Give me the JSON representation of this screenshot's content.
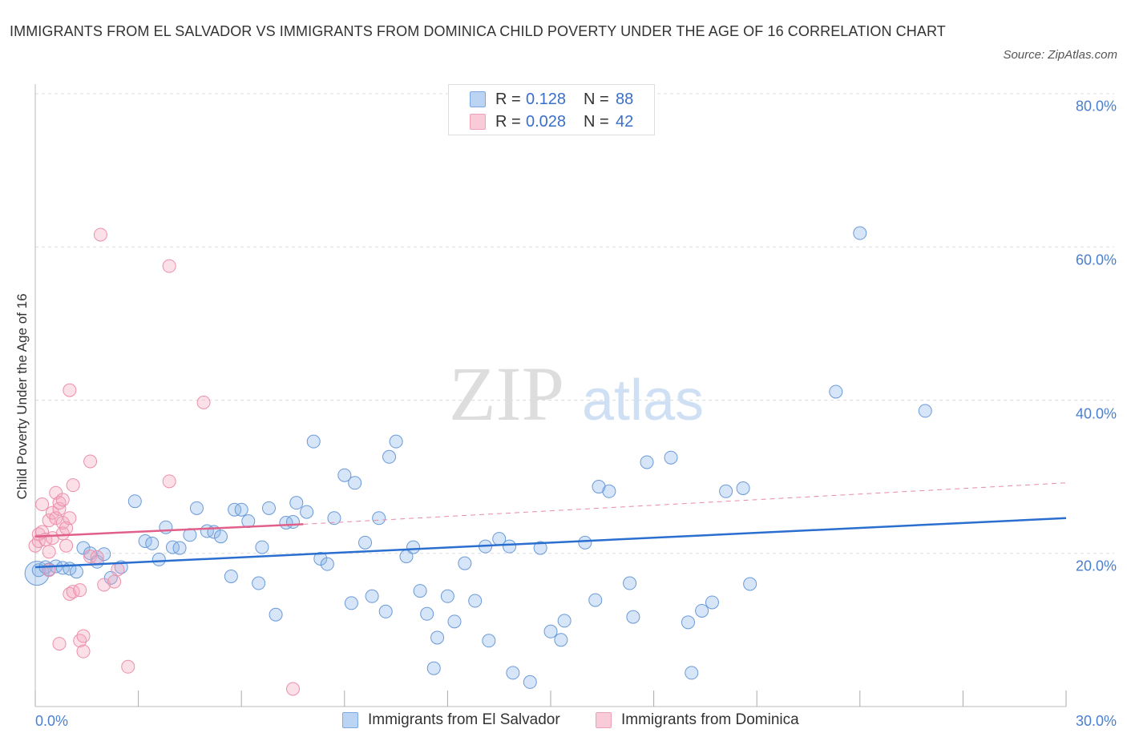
{
  "chart_data": {
    "type": "scatter",
    "title": "IMMIGRANTS FROM EL SALVADOR VS IMMIGRANTS FROM DOMINICA CHILD POVERTY UNDER THE AGE OF 16 CORRELATION CHART",
    "source": "Source: ZipAtlas.com",
    "ylabel": "Child Poverty Under the Age of 16",
    "xlim": [
      0,
      30
    ],
    "ylim": [
      0,
      80
    ],
    "x_tick_labels": [
      "0.0%",
      "30.0%"
    ],
    "y_ticks": [
      {
        "value": 80,
        "label": "80.0%"
      },
      {
        "value": 60,
        "label": "60.0%"
      },
      {
        "value": 40,
        "label": "40.0%"
      },
      {
        "value": 20,
        "label": "20.0%"
      }
    ],
    "grid": "horizontal dashed",
    "watermark": {
      "part1": "ZIP",
      "part2": "atlas"
    },
    "legend_box": [
      {
        "r_label": "R =",
        "r_value": "0.128",
        "n_label": "N =",
        "n_value": "88"
      },
      {
        "r_label": "R =",
        "r_value": "0.028",
        "n_label": "N =",
        "n_value": "42"
      }
    ],
    "series": [
      {
        "name": "Immigrants from El Salvador",
        "color": "#8ab4e8",
        "line_color": "#2a6fd0",
        "trend": {
          "x0": 0,
          "y0": 18.2,
          "x1": 30,
          "y1": 24.6
        },
        "points": [
          [
            0.1,
            17.8
          ],
          [
            0.3,
            18.2
          ],
          [
            0.4,
            17.9
          ],
          [
            0.6,
            18.3
          ],
          [
            0.8,
            18.1
          ],
          [
            1.0,
            18.0
          ],
          [
            1.2,
            17.6
          ],
          [
            1.4,
            20.7
          ],
          [
            1.6,
            20.0
          ],
          [
            1.8,
            18.9
          ],
          [
            2.0,
            19.9
          ],
          [
            2.2,
            16.8
          ],
          [
            2.5,
            18.2
          ],
          [
            2.9,
            26.8
          ],
          [
            3.2,
            21.6
          ],
          [
            3.4,
            21.3
          ],
          [
            3.6,
            19.2
          ],
          [
            3.8,
            23.4
          ],
          [
            4.0,
            20.8
          ],
          [
            4.2,
            20.7
          ],
          [
            4.5,
            22.4
          ],
          [
            4.7,
            25.9
          ],
          [
            5.0,
            22.9
          ],
          [
            5.2,
            22.8
          ],
          [
            5.4,
            22.2
          ],
          [
            5.7,
            17.0
          ],
          [
            5.8,
            25.7
          ],
          [
            6.0,
            25.7
          ],
          [
            6.2,
            24.2
          ],
          [
            6.5,
            16.1
          ],
          [
            6.6,
            20.8
          ],
          [
            6.8,
            25.9
          ],
          [
            7.0,
            12.0
          ],
          [
            7.3,
            24.0
          ],
          [
            7.5,
            24.1
          ],
          [
            7.6,
            26.6
          ],
          [
            7.9,
            25.4
          ],
          [
            8.1,
            34.6
          ],
          [
            8.3,
            19.3
          ],
          [
            8.5,
            18.6
          ],
          [
            8.7,
            24.6
          ],
          [
            9.0,
            30.2
          ],
          [
            9.2,
            13.5
          ],
          [
            9.3,
            29.2
          ],
          [
            9.6,
            21.4
          ],
          [
            9.8,
            14.4
          ],
          [
            10.0,
            24.6
          ],
          [
            10.2,
            12.4
          ],
          [
            10.3,
            32.6
          ],
          [
            10.5,
            34.6
          ],
          [
            10.8,
            19.6
          ],
          [
            11.0,
            20.8
          ],
          [
            11.2,
            15.1
          ],
          [
            11.4,
            12.1
          ],
          [
            11.6,
            5.0
          ],
          [
            11.7,
            9.0
          ],
          [
            12.0,
            14.4
          ],
          [
            12.2,
            11.1
          ],
          [
            12.5,
            18.7
          ],
          [
            12.8,
            13.8
          ],
          [
            13.1,
            20.9
          ],
          [
            13.2,
            8.6
          ],
          [
            13.5,
            21.9
          ],
          [
            13.8,
            20.9
          ],
          [
            13.9,
            4.4
          ],
          [
            14.4,
            3.2
          ],
          [
            14.7,
            20.7
          ],
          [
            15.0,
            9.8
          ],
          [
            15.3,
            8.7
          ],
          [
            15.4,
            11.2
          ],
          [
            16.0,
            21.4
          ],
          [
            16.3,
            13.9
          ],
          [
            16.4,
            28.7
          ],
          [
            16.7,
            28.1
          ],
          [
            17.3,
            16.1
          ],
          [
            17.4,
            11.7
          ],
          [
            17.8,
            31.9
          ],
          [
            18.5,
            32.5
          ],
          [
            19.0,
            11.0
          ],
          [
            19.1,
            4.4
          ],
          [
            19.4,
            12.5
          ],
          [
            19.7,
            13.6
          ],
          [
            20.1,
            28.1
          ],
          [
            20.6,
            28.5
          ],
          [
            20.8,
            16.0
          ],
          [
            23.3,
            41.1
          ],
          [
            24.0,
            61.8
          ],
          [
            25.9,
            38.6
          ]
        ]
      },
      {
        "name": "Immigrants from Dominica",
        "color": "#f4a7be",
        "line_color": "#e0608a",
        "trend": {
          "x0": 0,
          "y0": 22.2,
          "x1": 7.8,
          "y1": 23.8
        },
        "dashed_trend": {
          "x0": 7.8,
          "y0": 23.8,
          "x1": 30,
          "y1": 29.2
        },
        "points": [
          [
            0.0,
            21.0
          ],
          [
            0.1,
            22.5
          ],
          [
            0.1,
            21.6
          ],
          [
            0.2,
            22.8
          ],
          [
            0.2,
            26.4
          ],
          [
            0.3,
            21.8
          ],
          [
            0.4,
            17.8
          ],
          [
            0.4,
            20.2
          ],
          [
            0.4,
            24.3
          ],
          [
            0.5,
            25.3
          ],
          [
            0.5,
            22.0
          ],
          [
            0.6,
            24.6
          ],
          [
            0.6,
            27.9
          ],
          [
            0.7,
            25.8
          ],
          [
            0.7,
            26.6
          ],
          [
            0.7,
            8.2
          ],
          [
            0.8,
            27.0
          ],
          [
            0.8,
            24.0
          ],
          [
            0.8,
            22.6
          ],
          [
            0.9,
            23.3
          ],
          [
            0.9,
            21.0
          ],
          [
            1.0,
            14.7
          ],
          [
            1.0,
            24.6
          ],
          [
            1.1,
            15.0
          ],
          [
            1.0,
            41.3
          ],
          [
            1.1,
            28.9
          ],
          [
            1.3,
            15.2
          ],
          [
            1.3,
            8.6
          ],
          [
            1.4,
            9.2
          ],
          [
            1.4,
            7.2
          ],
          [
            1.6,
            19.6
          ],
          [
            1.6,
            32.0
          ],
          [
            1.8,
            19.5
          ],
          [
            1.9,
            61.6
          ],
          [
            2.0,
            15.9
          ],
          [
            2.3,
            16.3
          ],
          [
            2.4,
            17.9
          ],
          [
            2.7,
            5.2
          ],
          [
            3.9,
            57.5
          ],
          [
            3.9,
            29.4
          ],
          [
            4.9,
            39.7
          ],
          [
            7.5,
            2.3
          ]
        ]
      }
    ]
  }
}
